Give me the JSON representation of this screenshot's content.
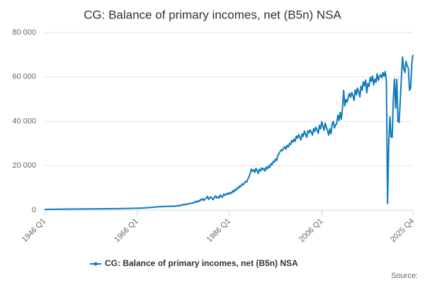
{
  "chart_data": {
    "type": "line",
    "title": "CG: Balance of primary incomes, net (B5n) NSA",
    "source": "Source:",
    "categories": [
      "1946 Q1",
      null,
      null,
      null,
      null,
      null,
      null,
      null,
      null,
      null,
      null,
      null,
      null,
      null,
      null,
      null,
      null,
      null,
      null,
      null,
      null,
      null,
      null,
      null,
      null,
      null,
      null,
      null,
      null,
      null,
      null,
      null,
      null,
      null,
      null,
      null,
      null,
      null,
      null,
      null,
      null,
      null,
      null,
      null,
      null,
      null,
      null,
      null,
      null,
      null,
      null,
      null,
      null,
      null,
      null,
      null,
      null,
      null,
      null,
      null,
      null,
      null,
      null,
      null,
      null,
      null,
      null,
      null,
      null,
      null,
      null,
      null,
      null,
      null,
      null,
      null,
      null,
      null,
      null,
      null,
      "1966 Q1",
      null,
      null,
      null,
      null,
      null,
      null,
      null,
      null,
      null,
      null,
      null,
      null,
      null,
      null,
      null,
      null,
      null,
      null,
      null,
      null,
      null,
      null,
      null,
      null,
      null,
      null,
      null,
      null,
      null,
      null,
      null,
      null,
      null,
      null,
      null,
      null,
      null,
      null,
      null,
      null,
      null,
      null,
      null,
      null,
      null,
      null,
      null,
      null,
      null,
      null,
      null,
      null,
      null,
      null,
      null,
      null,
      null,
      null,
      null,
      null,
      null,
      null,
      null,
      null,
      null,
      null,
      null,
      null,
      null,
      null,
      null,
      null,
      null,
      null,
      null,
      null,
      null,
      null,
      null,
      "1986 Q1",
      null,
      null,
      null,
      null,
      null,
      null,
      null,
      null,
      null,
      null,
      null,
      null,
      null,
      null,
      null,
      null,
      null,
      null,
      null,
      null,
      null,
      null,
      null,
      null,
      null,
      null,
      null,
      null,
      null,
      null,
      null,
      null,
      null,
      null,
      null,
      null,
      null,
      null,
      null,
      null,
      null,
      null,
      null,
      null,
      null,
      null,
      null,
      null,
      null,
      null,
      null,
      null,
      null,
      null,
      null,
      null,
      null,
      null,
      null,
      null,
      null,
      null,
      null,
      null,
      null,
      null,
      null,
      null,
      null,
      null,
      null,
      null,
      null,
      null,
      null,
      null,
      null,
      null,
      null,
      "2006 Q1",
      null,
      null,
      null,
      null,
      null,
      null,
      null,
      null,
      null,
      null,
      null,
      null,
      null,
      null,
      null,
      null,
      null,
      null,
      null,
      null,
      null,
      null,
      null,
      null,
      null,
      null,
      null,
      null,
      null,
      null,
      null,
      null,
      null,
      null,
      null,
      null,
      null,
      null,
      null,
      null,
      null,
      null,
      null,
      null,
      null,
      null,
      null,
      null,
      null,
      null,
      null,
      null,
      null,
      null,
      null,
      null,
      null,
      null,
      null,
      null,
      null,
      null,
      null,
      null,
      null,
      null,
      null,
      null,
      null,
      null,
      null,
      null,
      null,
      null,
      null,
      null,
      null,
      null,
      "2025 Q4"
    ],
    "series": [
      {
        "name": "CG: Balance of primary incomes, net (B5n) NSA",
        "color": "#0f7bbd",
        "values": [
          300,
          320,
          330,
          340,
          350,
          360,
          370,
          380,
          390,
          400,
          400,
          410,
          420,
          420,
          430,
          440,
          440,
          450,
          450,
          460,
          460,
          470,
          470,
          480,
          480,
          490,
          490,
          500,
          500,
          510,
          510,
          520,
          520,
          530,
          530,
          540,
          540,
          550,
          550,
          560,
          560,
          560,
          570,
          570,
          580,
          580,
          590,
          590,
          600,
          600,
          600,
          610,
          610,
          620,
          620,
          630,
          630,
          640,
          640,
          650,
          650,
          660,
          660,
          670,
          680,
          690,
          700,
          710,
          720,
          730,
          740,
          750,
          760,
          770,
          780,
          790,
          800,
          810,
          820,
          830,
          850,
          870,
          890,
          910,
          930,
          960,
          990,
          1020,
          1050,
          1080,
          1110,
          1150,
          1200,
          1250,
          1300,
          1350,
          1400,
          1450,
          1500,
          1550,
          1600,
          1550,
          1700,
          1650,
          1600,
          1750,
          1700,
          1650,
          1800,
          1700,
          1600,
          1900,
          1800,
          1700,
          2000,
          1800,
          2200,
          1900,
          2100,
          2500,
          2300,
          2600,
          2400,
          2800,
          2700,
          3000,
          2900,
          3200,
          3100,
          3500,
          3400,
          4000,
          3600,
          4200,
          3900,
          4800,
          4500,
          5200,
          4400,
          5000,
          5500,
          6200,
          4800,
          5600,
          6000,
          5200,
          4700,
          5800,
          6400,
          5500,
          6000,
          5400,
          6800,
          6200,
          5800,
          7200,
          6600,
          7400,
          7000,
          7800,
          7200,
          8000,
          7600,
          8800,
          8200,
          9400,
          9000,
          10200,
          9800,
          11000,
          10600,
          11800,
          11400,
          12200,
          13000,
          12600,
          14000,
          15000,
          16500,
          18500,
          17500,
          18200,
          17000,
          18800,
          17800,
          16500,
          18400,
          17600,
          19000,
          18200,
          18800,
          17600,
          19400,
          18600,
          20000,
          19200,
          21000,
          20400,
          22000,
          21600,
          23000,
          22400,
          24600,
          25600,
          26400,
          27200,
          26800,
          28000,
          28600,
          27400,
          29200,
          28400,
          30000,
          29600,
          31400,
          30600,
          32000,
          31000,
          33400,
          32400,
          34000,
          33000,
          31600,
          34400,
          33200,
          35600,
          34200,
          32800,
          35800,
          34800,
          36200,
          35000,
          33800,
          36800,
          35400,
          37400,
          36000,
          34600,
          38200,
          36600,
          39800,
          37800,
          36000,
          39200,
          37400,
          35800,
          33800,
          36600,
          34400,
          38800,
          40000,
          37000,
          38400,
          39000,
          42800,
          40400,
          44000,
          41000,
          46000,
          54000,
          47000,
          49800,
          48600,
          51000,
          52600,
          50800,
          53000,
          51600,
          49400,
          54200,
          52000,
          55000,
          53400,
          51000,
          55800,
          54000,
          57800,
          56000,
          58600,
          52800,
          57000,
          55800,
          59800,
          58000,
          60400,
          56400,
          59000,
          57600,
          61400,
          58400,
          60200,
          61000,
          59600,
          62000,
          60400,
          62400,
          58000,
          3000,
          29000,
          42000,
          33000,
          32800,
          50000,
          59000,
          46000,
          59000,
          40000,
          39500,
          49000,
          60000,
          69000,
          64000,
          62000,
          67000,
          65000,
          64000,
          54000,
          55000,
          66000,
          70000
        ]
      }
    ],
    "ylim": [
      0,
      80000
    ],
    "yticks": [
      0,
      {
        "value": 20000,
        "label": "20 000"
      },
      {
        "value": 40000,
        "label": "40 000"
      },
      {
        "value": 60000,
        "label": "60 000"
      },
      {
        "value": 80000,
        "label": "80 000"
      }
    ],
    "grid": true,
    "legend": "bottom"
  }
}
